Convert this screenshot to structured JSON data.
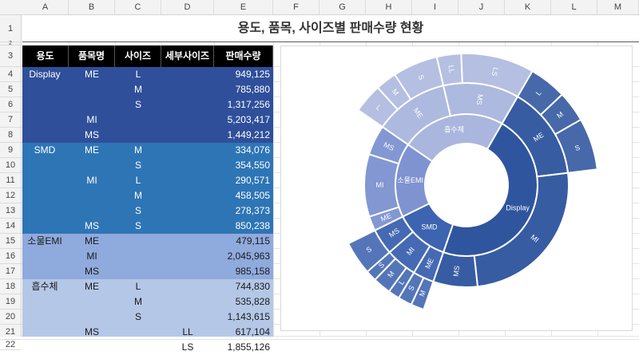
{
  "sheet": {
    "columns": [
      "A",
      "B",
      "C",
      "D",
      "E",
      "F",
      "G",
      "H",
      "I",
      "J",
      "K",
      "L",
      "M"
    ],
    "rows": [
      "1",
      "2",
      "3",
      "4",
      "5",
      "6",
      "7",
      "8",
      "9",
      "10",
      "11",
      "12",
      "13",
      "14",
      "15",
      "16",
      "17",
      "18",
      "19",
      "20",
      "21",
      "22"
    ],
    "title": "용도, 품목, 사이즈별 판매수량 현황",
    "headers": [
      "용도",
      "품목명",
      "사이즈",
      "세부사이즈",
      "판매수량"
    ],
    "data_rows": [
      {
        "a": "Display",
        "b": "ME",
        "c": "L",
        "d": "",
        "e": "949,125"
      },
      {
        "a": "",
        "b": "",
        "c": "M",
        "d": "",
        "e": "785,880"
      },
      {
        "a": "",
        "b": "",
        "c": "S",
        "d": "",
        "e": "1,317,256"
      },
      {
        "a": "",
        "b": "MI",
        "c": "",
        "d": "",
        "e": "5,203,417"
      },
      {
        "a": "",
        "b": "MS",
        "c": "",
        "d": "",
        "e": "1,449,212"
      },
      {
        "a": "SMD",
        "b": "ME",
        "c": "M",
        "d": "",
        "e": "334,076"
      },
      {
        "a": "",
        "b": "",
        "c": "S",
        "d": "",
        "e": "354,550"
      },
      {
        "a": "",
        "b": "MI",
        "c": "L",
        "d": "",
        "e": "290,571"
      },
      {
        "a": "",
        "b": "",
        "c": "M",
        "d": "",
        "e": "458,505"
      },
      {
        "a": "",
        "b": "",
        "c": "S",
        "d": "",
        "e": "278,373"
      },
      {
        "a": "",
        "b": "MS",
        "c": "S",
        "d": "",
        "e": "850,238"
      },
      {
        "a": "소물EMI",
        "b": "ME",
        "c": "",
        "d": "",
        "e": "479,115"
      },
      {
        "a": "",
        "b": "MI",
        "c": "",
        "d": "",
        "e": "2,045,963"
      },
      {
        "a": "",
        "b": "MS",
        "c": "",
        "d": "",
        "e": "985,158"
      },
      {
        "a": "흡수체",
        "b": "ME",
        "c": "L",
        "d": "",
        "e": "744,830"
      },
      {
        "a": "",
        "b": "",
        "c": "M",
        "d": "",
        "e": "535,828"
      },
      {
        "a": "",
        "b": "",
        "c": "S",
        "d": "",
        "e": "1,143,615"
      },
      {
        "a": "",
        "b": "MS",
        "c": "",
        "d": "LL",
        "e": "617,104"
      },
      {
        "a": "",
        "b": "",
        "c": "",
        "d": "LS",
        "e": "1,855,126"
      }
    ]
  },
  "colors": {
    "display_band": "#2f4f9a",
    "smd_band": "#2e75b6",
    "emi_band": "#8faadc",
    "absorber_band": "#b4c7e7"
  },
  "chart_data": {
    "type": "sunburst",
    "hierarchy": [
      {
        "name": "Display",
        "color": "#2f559e",
        "children": [
          {
            "name": "ME",
            "children": [
              {
                "name": "L",
                "value": 949125
              },
              {
                "name": "M",
                "value": 785880
              },
              {
                "name": "S",
                "value": 1317256
              }
            ]
          },
          {
            "name": "MI",
            "value": 5203417
          },
          {
            "name": "MS",
            "value": 1449212
          }
        ]
      },
      {
        "name": "SMD",
        "color": "#3d64b0",
        "children": [
          {
            "name": "ME",
            "children": [
              {
                "name": "M",
                "value": 334076
              },
              {
                "name": "S",
                "value": 354550
              }
            ]
          },
          {
            "name": "MI",
            "children": [
              {
                "name": "L",
                "value": 290571
              },
              {
                "name": "M",
                "value": 458505
              },
              {
                "name": "S",
                "value": 278373
              }
            ]
          },
          {
            "name": "MS",
            "children": [
              {
                "name": "S",
                "value": 850238
              }
            ]
          }
        ]
      },
      {
        "name": "소물EMI",
        "color": "#7e93d0",
        "children": [
          {
            "name": "ME",
            "value": 479115
          },
          {
            "name": "MI",
            "value": 2045963
          },
          {
            "name": "MS",
            "value": 985158
          }
        ]
      },
      {
        "name": "흡수체",
        "color": "#aab6dd",
        "children": [
          {
            "name": "ME",
            "children": [
              {
                "name": "L",
                "value": 744830
              },
              {
                "name": "M",
                "value": 535828
              },
              {
                "name": "S",
                "value": 1143615
              }
            ]
          },
          {
            "name": "MS",
            "children": [
              {
                "name": "LL",
                "value": 617104
              },
              {
                "name": "LS",
                "value": 1855126
              }
            ]
          }
        ]
      }
    ]
  }
}
